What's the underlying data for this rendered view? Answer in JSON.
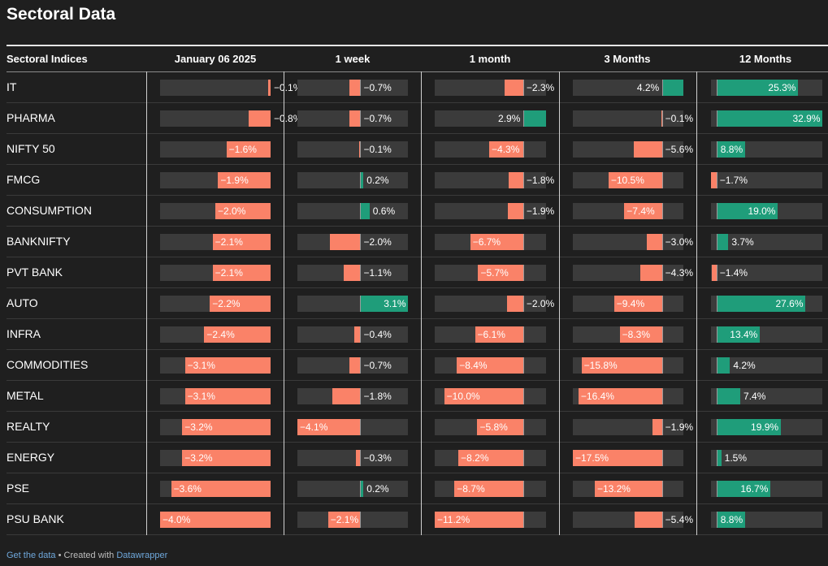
{
  "title": "Sectoral Data",
  "footer": {
    "get_data": "Get the data",
    "created_with": " • Created with ",
    "datawrapper": "Datawrapper"
  },
  "colors": {
    "positive": "#1f9d7a",
    "negative": "#fa8268",
    "track": "#3b3b3b",
    "background": "#1f1f1f"
  },
  "chart_data": {
    "type": "table",
    "row_header": "Sectoral Indices",
    "columns": [
      {
        "label": "January 06 2025",
        "range": [
          -4.0,
          0
        ]
      },
      {
        "label": "1 week",
        "range": [
          -4.1,
          3.1
        ]
      },
      {
        "label": "1 month",
        "range": [
          -11.2,
          2.9
        ]
      },
      {
        "label": "3 Months",
        "range": [
          -17.5,
          4.2
        ]
      },
      {
        "label": "12 Months",
        "range": [
          -1.7,
          32.9
        ]
      }
    ],
    "rows": [
      {
        "name": "IT",
        "values": [
          -0.1,
          -0.7,
          -2.3,
          4.2,
          25.3
        ]
      },
      {
        "name": "PHARMA",
        "values": [
          -0.8,
          -0.7,
          2.9,
          -0.1,
          32.9
        ]
      },
      {
        "name": "NIFTY 50",
        "values": [
          -1.6,
          -0.1,
          -4.3,
          -5.6,
          8.8
        ]
      },
      {
        "name": "FMCG",
        "values": [
          -1.9,
          0.2,
          -1.8,
          -10.5,
          -1.7
        ]
      },
      {
        "name": "CONSUMPTION",
        "values": [
          -2.0,
          0.6,
          -1.9,
          -7.4,
          19.0
        ]
      },
      {
        "name": "BANKNIFTY",
        "values": [
          -2.1,
          -2.0,
          -6.7,
          -3.0,
          3.7
        ]
      },
      {
        "name": "PVT BANK",
        "values": [
          -2.1,
          -1.1,
          -5.7,
          -4.3,
          -1.4
        ]
      },
      {
        "name": "AUTO",
        "values": [
          -2.2,
          3.1,
          -2.0,
          -9.4,
          27.6
        ]
      },
      {
        "name": "INFRA",
        "values": [
          -2.4,
          -0.4,
          -6.1,
          -8.3,
          13.4
        ]
      },
      {
        "name": "COMMODITIES",
        "values": [
          -3.1,
          -0.7,
          -8.4,
          -15.8,
          4.2
        ]
      },
      {
        "name": "METAL",
        "values": [
          -3.1,
          -1.8,
          -10.0,
          -16.4,
          7.4
        ]
      },
      {
        "name": "REALTY",
        "values": [
          -3.2,
          -4.1,
          -5.8,
          -1.9,
          19.9
        ]
      },
      {
        "name": "ENERGY",
        "values": [
          -3.2,
          -0.3,
          -8.2,
          -17.5,
          1.5
        ]
      },
      {
        "name": "PSE",
        "values": [
          -3.6,
          0.2,
          -8.7,
          -13.2,
          16.7
        ]
      },
      {
        "name": "PSU BANK",
        "values": [
          -4.0,
          -2.1,
          -11.2,
          -5.4,
          8.8
        ]
      }
    ]
  }
}
